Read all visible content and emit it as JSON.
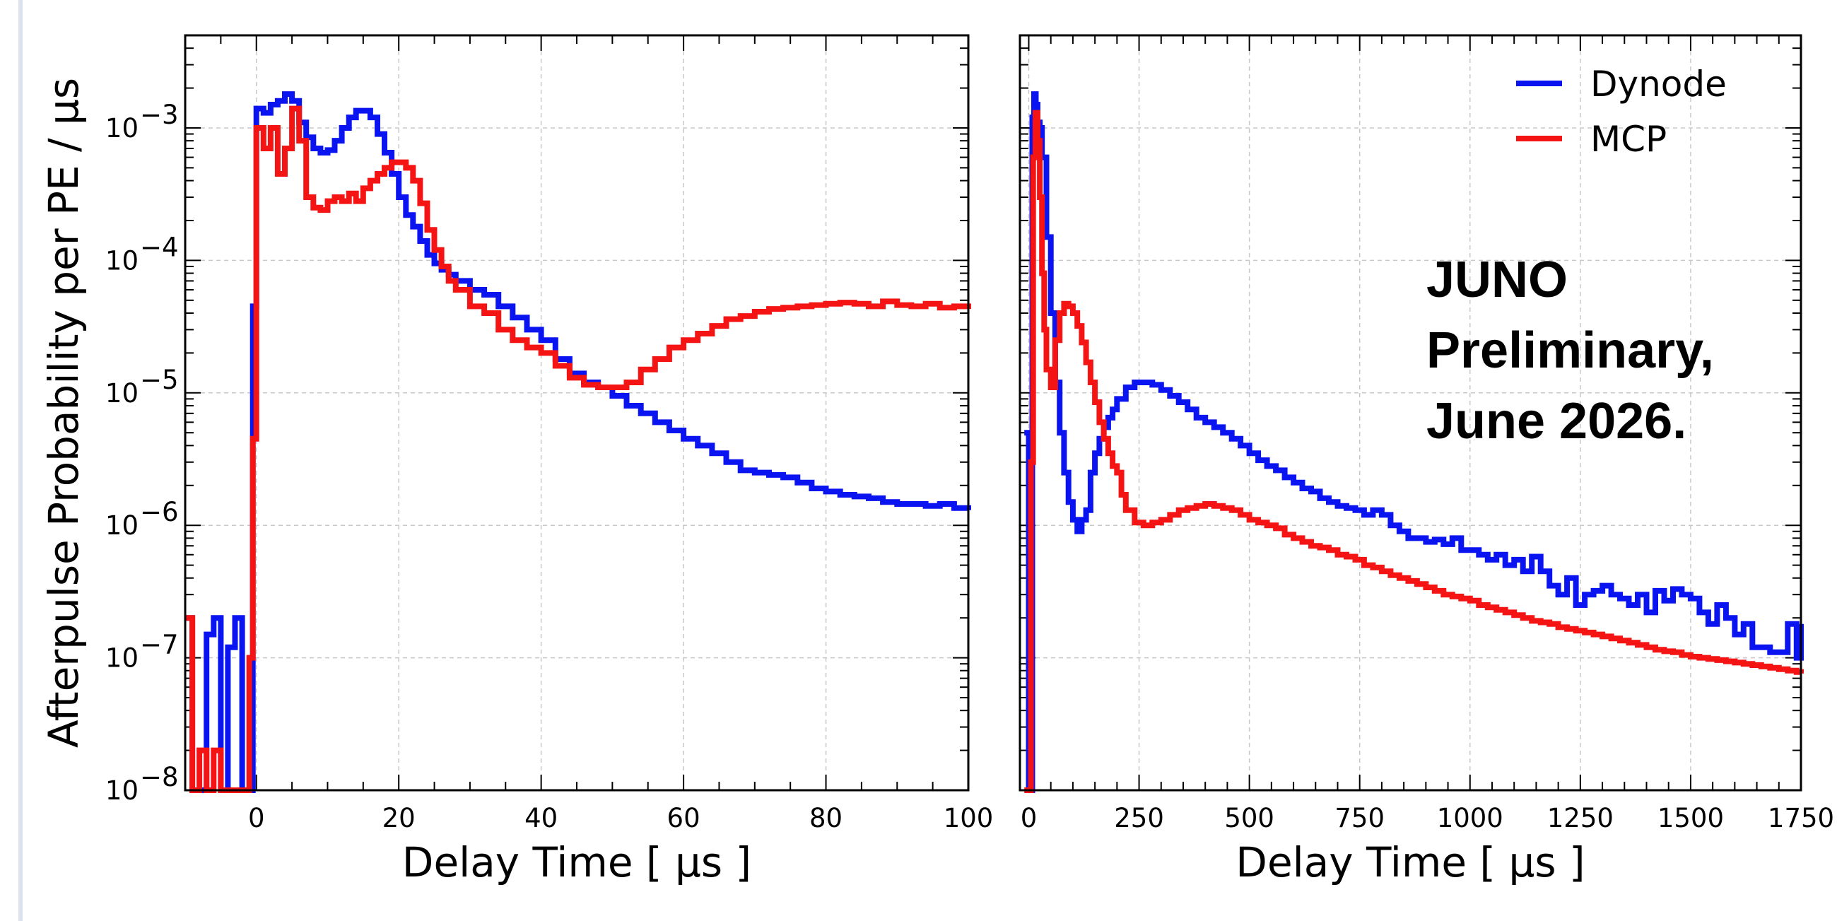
{
  "chart_data": [
    {
      "type": "line",
      "panel": "left",
      "xlabel": "Delay Time [ μs ]",
      "ylabel": "Afterpulse Probability per PE / μs",
      "xlim": [
        -10,
        100
      ],
      "ylim": [
        1e-08,
        0.005
      ],
      "yscale": "log",
      "grid": true,
      "xticks": [
        "0",
        "20",
        "40",
        "60",
        "80",
        "100"
      ],
      "yticks": [
        {
          "base": "10",
          "exp": "−3",
          "value": 0.001
        },
        {
          "base": "10",
          "exp": "−4",
          "value": 0.0001
        },
        {
          "base": "10",
          "exp": "−5",
          "value": 1e-05
        },
        {
          "base": "10",
          "exp": "−6",
          "value": 1e-06
        },
        {
          "base": "10",
          "exp": "−7",
          "value": 1e-07
        },
        {
          "base": "10",
          "exp": "−8",
          "value": 1e-08
        }
      ],
      "series": [
        {
          "name": "Dynode",
          "color": "#0a14f0",
          "x": [
            -10,
            -9,
            -8,
            -7,
            -6,
            -5,
            -4,
            -3,
            -2,
            -1,
            -0.5,
            0,
            1,
            2,
            3,
            4,
            5,
            6,
            7,
            8,
            9,
            10,
            11,
            12,
            13,
            14,
            15,
            16,
            17,
            18,
            19,
            20,
            21,
            22,
            23,
            24,
            25,
            26,
            27,
            28,
            30,
            32,
            34,
            36,
            38,
            40,
            42,
            44,
            46,
            48,
            50,
            52,
            54,
            56,
            58,
            60,
            62,
            64,
            66,
            68,
            70,
            72,
            74,
            76,
            78,
            80,
            82,
            84,
            86,
            88,
            90,
            92,
            94,
            96,
            98,
            100
          ],
          "y": [
            2e-07,
            1e-08,
            1e-08,
            1.5e-07,
            2e-07,
            1e-08,
            1.2e-07,
            2e-07,
            1e-08,
            1e-08,
            4.5e-05,
            0.0014,
            0.0013,
            0.0015,
            0.0016,
            0.0018,
            0.0016,
            0.0011,
            0.00085,
            0.0007,
            0.00065,
            0.00068,
            0.0008,
            0.001,
            0.0012,
            0.00135,
            0.00135,
            0.0012,
            0.0009,
            0.00065,
            0.00045,
            0.0003,
            0.00022,
            0.00018,
            0.00014,
            0.00011,
            9.5e-05,
            8.5e-05,
            7.8e-05,
            7e-05,
            6e-05,
            5.5e-05,
            4.5e-05,
            3.7e-05,
            3e-05,
            2.5e-05,
            1.8e-05,
            1.4e-05,
            1.2e-05,
            1.1e-05,
            9.5e-06,
            8e-06,
            7e-06,
            6e-06,
            5.2e-06,
            4.5e-06,
            4e-06,
            3.5e-06,
            3e-06,
            2.6e-06,
            2.5e-06,
            2.4e-06,
            2.3e-06,
            2.1e-06,
            1.9e-06,
            1.8e-06,
            1.7e-06,
            1.65e-06,
            1.6e-06,
            1.5e-06,
            1.45e-06,
            1.45e-06,
            1.4e-06,
            1.45e-06,
            1.35e-06,
            1.3e-06
          ]
        },
        {
          "name": "MCP",
          "color": "#f51414",
          "x": [
            -10,
            -9,
            -8,
            -7,
            -6,
            -5,
            -4,
            -3,
            -2,
            -1,
            -0.5,
            0,
            1,
            2,
            3,
            4,
            5,
            6,
            7,
            8,
            9,
            10,
            11,
            12,
            13,
            14,
            15,
            16,
            17,
            18,
            19,
            20,
            21,
            22,
            23,
            24,
            25,
            26,
            27,
            28,
            30,
            32,
            34,
            36,
            38,
            40,
            42,
            44,
            46,
            48,
            50,
            52,
            54,
            56,
            58,
            60,
            62,
            64,
            66,
            68,
            70,
            72,
            74,
            76,
            78,
            80,
            82,
            84,
            86,
            88,
            90,
            92,
            94,
            96,
            98,
            100
          ],
          "y": [
            2e-07,
            1e-08,
            2e-08,
            1e-08,
            2e-08,
            1e-08,
            1e-08,
            1e-08,
            1e-08,
            1e-07,
            4.5e-06,
            0.001,
            0.0007,
            0.001,
            0.00045,
            0.0007,
            0.0014,
            0.0008,
            0.0003,
            0.00025,
            0.00024,
            0.00028,
            0.0003,
            0.00028,
            0.00032,
            0.00028,
            0.00035,
            0.0004,
            0.00045,
            0.0005,
            0.00055,
            0.00055,
            0.0005,
            0.0004,
            0.00027,
            0.00017,
            0.00012,
            9e-05,
            7e-05,
            6e-05,
            4.5e-05,
            4e-05,
            3e-05,
            2.5e-05,
            2.2e-05,
            2e-05,
            1.6e-05,
            1.3e-05,
            1.15e-05,
            1.1e-05,
            1.1e-05,
            1.2e-05,
            1.5e-05,
            1.8e-05,
            2.2e-05,
            2.5e-05,
            2.8e-05,
            3.2e-05,
            3.6e-05,
            3.8e-05,
            4.1e-05,
            4.3e-05,
            4.4e-05,
            4.5e-05,
            4.6e-05,
            4.7e-05,
            4.8e-05,
            4.7e-05,
            4.5e-05,
            4.9e-05,
            4.6e-05,
            4.5e-05,
            4.7e-05,
            4.4e-05,
            4.5e-05,
            4.3e-05
          ]
        }
      ]
    },
    {
      "type": "line",
      "panel": "right",
      "xlabel": "Delay Time [ μs ]",
      "ylabel": "",
      "xlim": [
        -20,
        1750
      ],
      "ylim": [
        1e-08,
        0.005
      ],
      "yscale": "log",
      "grid": true,
      "xticks": [
        "0",
        "250",
        "500",
        "750",
        "1000",
        "1250",
        "1500",
        "1750"
      ],
      "legend": {
        "placement": "top-right",
        "entries": [
          {
            "label": "Dynode",
            "color": "#0a14f0"
          },
          {
            "label": "MCP",
            "color": "#f51414"
          }
        ]
      },
      "annotation": [
        "JUNO",
        "Preliminary,",
        "June 2026."
      ],
      "series": [
        {
          "name": "Dynode",
          "color": "#0a14f0",
          "x": [
            -10,
            0,
            8,
            12,
            16,
            20,
            25,
            30,
            40,
            50,
            60,
            70,
            80,
            90,
            100,
            110,
            120,
            130,
            140,
            150,
            160,
            170,
            180,
            190,
            200,
            220,
            240,
            260,
            280,
            300,
            320,
            340,
            360,
            380,
            400,
            420,
            440,
            460,
            480,
            500,
            520,
            540,
            560,
            580,
            600,
            620,
            640,
            660,
            680,
            700,
            720,
            740,
            760,
            780,
            800,
            820,
            840,
            860,
            880,
            900,
            920,
            940,
            960,
            980,
            1000,
            1020,
            1040,
            1060,
            1080,
            1100,
            1120,
            1140,
            1160,
            1180,
            1200,
            1220,
            1240,
            1260,
            1280,
            1300,
            1320,
            1340,
            1360,
            1380,
            1400,
            1420,
            1440,
            1460,
            1480,
            1500,
            1520,
            1540,
            1560,
            1580,
            1600,
            1620,
            1640,
            1660,
            1680,
            1700,
            1720,
            1740,
            1750
          ],
          "y": [
            5e-06,
            1e-08,
            0.0012,
            0.0018,
            0.0015,
            0.0011,
            0.001,
            0.0006,
            0.00015,
            4e-05,
            1.2e-05,
            5e-06,
            2.5e-06,
            1.5e-06,
            1.1e-06,
            9e-07,
            1.1e-06,
            1.3e-06,
            2.5e-06,
            3.5e-06,
            4.5e-06,
            5.5e-06,
            6.5e-06,
            7.5e-06,
            9e-06,
            1.1e-05,
            1.2e-05,
            1.2e-05,
            1.15e-05,
            1.05e-05,
            9.5e-06,
            8.5e-06,
            7.5e-06,
            6.5e-06,
            6e-06,
            5.5e-06,
            5e-06,
            4.5e-06,
            4e-06,
            3.5e-06,
            3.1e-06,
            2.8e-06,
            2.6e-06,
            2.3e-06,
            2.1e-06,
            1.9e-06,
            1.8e-06,
            1.6e-06,
            1.5e-06,
            1.4e-06,
            1.35e-06,
            1.3e-06,
            1.2e-06,
            1.3e-06,
            1.2e-06,
            1e-06,
            9e-07,
            8e-07,
            8e-07,
            7.5e-07,
            7.8e-07,
            7.2e-07,
            8e-07,
            6.5e-07,
            6.5e-07,
            6e-07,
            5.5e-07,
            6e-07,
            5e-07,
            5.5e-07,
            4.5e-07,
            5.8e-07,
            4.5e-07,
            3.5e-07,
            3e-07,
            4e-07,
            2.5e-07,
            3e-07,
            3.2e-07,
            3.5e-07,
            3e-07,
            2.8e-07,
            2.5e-07,
            3e-07,
            2.2e-07,
            3.2e-07,
            2.7e-07,
            3.3e-07,
            3e-07,
            2.8e-07,
            2.2e-07,
            1.8e-07,
            2.5e-07,
            2e-07,
            1.5e-07,
            1.8e-07,
            1.2e-07,
            1.2e-07,
            1.1e-07,
            1.1e-07,
            1.8e-07,
            1e-07,
            1.8e-07
          ]
        },
        {
          "name": "MCP",
          "color": "#f51414",
          "x": [
            -10,
            0,
            5,
            10,
            15,
            20,
            25,
            30,
            35,
            40,
            50,
            60,
            70,
            80,
            90,
            100,
            110,
            120,
            130,
            140,
            150,
            160,
            170,
            180,
            190,
            200,
            210,
            220,
            240,
            260,
            280,
            300,
            320,
            340,
            360,
            380,
            400,
            420,
            440,
            460,
            480,
            500,
            520,
            540,
            560,
            580,
            600,
            620,
            640,
            660,
            680,
            700,
            720,
            740,
            760,
            780,
            800,
            820,
            840,
            860,
            880,
            900,
            920,
            940,
            960,
            980,
            1000,
            1020,
            1040,
            1060,
            1080,
            1100,
            1120,
            1140,
            1160,
            1180,
            1200,
            1220,
            1240,
            1260,
            1280,
            1300,
            1320,
            1340,
            1360,
            1380,
            1400,
            1420,
            1440,
            1460,
            1480,
            1500,
            1520,
            1540,
            1560,
            1580,
            1600,
            1620,
            1640,
            1660,
            1680,
            1700,
            1720,
            1740,
            1750
          ],
          "y": [
            1e-08,
            1e-08,
            3e-06,
            0.0006,
            0.0013,
            0.0008,
            0.0003,
            8e-05,
            3e-05,
            1.5e-05,
            1.1e-05,
            2.5e-05,
            4e-05,
            4.7e-05,
            4.5e-05,
            4e-05,
            3.2e-05,
            2.4e-05,
            1.7e-05,
            1.2e-05,
            8.5e-06,
            6e-06,
            4.5e-06,
            3.5e-06,
            2.8e-06,
            2.5e-06,
            1.7e-06,
            1.3e-06,
            1.05e-06,
            1e-06,
            1.05e-06,
            1.1e-06,
            1.2e-06,
            1.3e-06,
            1.35e-06,
            1.4e-06,
            1.45e-06,
            1.4e-06,
            1.35e-06,
            1.3e-06,
            1.2e-06,
            1.1e-06,
            1.05e-06,
            1e-06,
            9.5e-07,
            8.5e-07,
            8e-07,
            7.5e-07,
            7e-07,
            6.8e-07,
            6.5e-07,
            6e-07,
            5.8e-07,
            5.5e-07,
            5e-07,
            4.8e-07,
            4.5e-07,
            4.2e-07,
            4e-07,
            3.8e-07,
            3.6e-07,
            3.4e-07,
            3.2e-07,
            3e-07,
            2.9e-07,
            2.8e-07,
            2.7e-07,
            2.5e-07,
            2.4e-07,
            2.3e-07,
            2.2e-07,
            2.1e-07,
            2e-07,
            1.9e-07,
            1.85e-07,
            1.8e-07,
            1.7e-07,
            1.65e-07,
            1.6e-07,
            1.55e-07,
            1.5e-07,
            1.45e-07,
            1.4e-07,
            1.35e-07,
            1.3e-07,
            1.25e-07,
            1.2e-07,
            1.15e-07,
            1.12e-07,
            1.1e-07,
            1.05e-07,
            1.02e-07,
            1e-07,
            9.8e-08,
            9.6e-08,
            9.4e-08,
            9.2e-08,
            9e-08,
            8.8e-08,
            8.6e-08,
            8.4e-08,
            8.2e-08,
            8e-08,
            7.8e-08,
            7.6e-08
          ]
        }
      ]
    }
  ]
}
